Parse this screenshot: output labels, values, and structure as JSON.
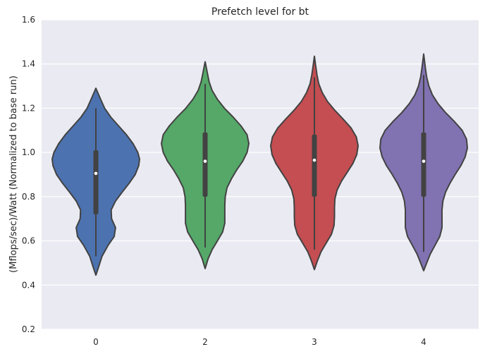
{
  "chart_data": {
    "type": "violin",
    "title": "Prefetch level for bt",
    "xlabel": "",
    "ylabel": "(Mflops/sec)/Watt (Normalized to base run)",
    "ylim": [
      0.2,
      1.6
    ],
    "yticks": [
      "0.2",
      "0.4",
      "0.6",
      "0.8",
      "1.0",
      "1.2",
      "1.4",
      "1.6"
    ],
    "grid": true,
    "categories": [
      "0",
      "2",
      "3",
      "4"
    ],
    "colors": [
      "#4c72b0",
      "#55a868",
      "#c44e52",
      "#8172b2"
    ],
    "violins": [
      {
        "category": "0",
        "min": 0.53,
        "q1": 0.72,
        "median": 0.905,
        "q3": 1.01,
        "max": 1.2,
        "range": [
          0.445,
          1.29
        ],
        "density": [
          [
            0.445,
            0.0
          ],
          [
            0.48,
            0.06
          ],
          [
            0.53,
            0.14
          ],
          [
            0.58,
            0.28
          ],
          [
            0.62,
            0.42
          ],
          [
            0.66,
            0.45
          ],
          [
            0.7,
            0.36
          ],
          [
            0.74,
            0.35
          ],
          [
            0.78,
            0.45
          ],
          [
            0.82,
            0.6
          ],
          [
            0.86,
            0.76
          ],
          [
            0.9,
            0.9
          ],
          [
            0.94,
            0.98
          ],
          [
            0.97,
            1.0
          ],
          [
            1.0,
            0.96
          ],
          [
            1.04,
            0.85
          ],
          [
            1.08,
            0.7
          ],
          [
            1.12,
            0.52
          ],
          [
            1.16,
            0.34
          ],
          [
            1.2,
            0.2
          ],
          [
            1.24,
            0.11
          ],
          [
            1.29,
            0.0
          ]
        ]
      },
      {
        "category": "2",
        "min": 0.57,
        "q1": 0.8,
        "median": 0.96,
        "q3": 1.09,
        "max": 1.31,
        "range": [
          0.475,
          1.41
        ],
        "density": [
          [
            0.475,
            0.0
          ],
          [
            0.52,
            0.07
          ],
          [
            0.56,
            0.16
          ],
          [
            0.6,
            0.28
          ],
          [
            0.64,
            0.4
          ],
          [
            0.68,
            0.45
          ],
          [
            0.72,
            0.45
          ],
          [
            0.76,
            0.45
          ],
          [
            0.8,
            0.46
          ],
          [
            0.84,
            0.5
          ],
          [
            0.88,
            0.6
          ],
          [
            0.92,
            0.72
          ],
          [
            0.96,
            0.86
          ],
          [
            1.0,
            0.96
          ],
          [
            1.04,
            1.0
          ],
          [
            1.08,
            0.96
          ],
          [
            1.12,
            0.82
          ],
          [
            1.16,
            0.64
          ],
          [
            1.2,
            0.44
          ],
          [
            1.24,
            0.28
          ],
          [
            1.28,
            0.16
          ],
          [
            1.32,
            0.09
          ],
          [
            1.36,
            0.05
          ],
          [
            1.41,
            0.0
          ]
        ]
      },
      {
        "category": "3",
        "min": 0.56,
        "q1": 0.8,
        "median": 0.965,
        "q3": 1.08,
        "max": 1.34,
        "range": [
          0.47,
          1.435
        ],
        "density": [
          [
            0.47,
            0.0
          ],
          [
            0.51,
            0.07
          ],
          [
            0.55,
            0.15
          ],
          [
            0.59,
            0.27
          ],
          [
            0.63,
            0.39
          ],
          [
            0.67,
            0.45
          ],
          [
            0.71,
            0.46
          ],
          [
            0.75,
            0.46
          ],
          [
            0.79,
            0.47
          ],
          [
            0.83,
            0.52
          ],
          [
            0.87,
            0.62
          ],
          [
            0.91,
            0.75
          ],
          [
            0.95,
            0.88
          ],
          [
            0.99,
            0.97
          ],
          [
            1.03,
            1.0
          ],
          [
            1.07,
            0.96
          ],
          [
            1.11,
            0.84
          ],
          [
            1.15,
            0.66
          ],
          [
            1.19,
            0.47
          ],
          [
            1.23,
            0.3
          ],
          [
            1.27,
            0.18
          ],
          [
            1.31,
            0.1
          ],
          [
            1.35,
            0.06
          ],
          [
            1.39,
            0.03
          ],
          [
            1.435,
            0.0
          ]
        ]
      },
      {
        "category": "4",
        "min": 0.55,
        "q1": 0.8,
        "median": 0.96,
        "q3": 1.09,
        "max": 1.35,
        "range": [
          0.465,
          1.445
        ],
        "density": [
          [
            0.465,
            0.0
          ],
          [
            0.5,
            0.07
          ],
          [
            0.54,
            0.15
          ],
          [
            0.58,
            0.26
          ],
          [
            0.62,
            0.37
          ],
          [
            0.66,
            0.42
          ],
          [
            0.7,
            0.42
          ],
          [
            0.74,
            0.42
          ],
          [
            0.78,
            0.44
          ],
          [
            0.82,
            0.5
          ],
          [
            0.86,
            0.6
          ],
          [
            0.9,
            0.72
          ],
          [
            0.94,
            0.85
          ],
          [
            0.98,
            0.95
          ],
          [
            1.02,
            1.0
          ],
          [
            1.06,
            0.98
          ],
          [
            1.1,
            0.88
          ],
          [
            1.14,
            0.7
          ],
          [
            1.18,
            0.5
          ],
          [
            1.22,
            0.33
          ],
          [
            1.26,
            0.2
          ],
          [
            1.3,
            0.12
          ],
          [
            1.34,
            0.07
          ],
          [
            1.38,
            0.04
          ],
          [
            1.445,
            0.0
          ]
        ]
      }
    ]
  }
}
